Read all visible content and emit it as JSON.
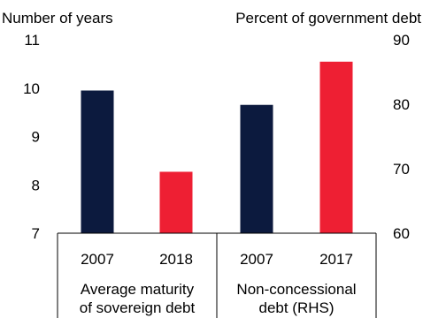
{
  "chart_data": {
    "type": "bar",
    "left_axis": {
      "label": "Number of years",
      "ylim": [
        7,
        11
      ],
      "ticks": [
        "7",
        "8",
        "9",
        "10",
        "11"
      ]
    },
    "right_axis": {
      "label": "Percent of government debt",
      "ylim": [
        60,
        90
      ],
      "ticks": [
        "60",
        "70",
        "80",
        "90"
      ]
    },
    "grid": false,
    "colors": {
      "navy": "#0c1a3e",
      "red": "#ee1f33"
    },
    "groups": [
      {
        "label_lines": [
          "Average maturity",
          "of sovereign debt"
        ],
        "axis": "left",
        "bars": [
          {
            "category": "2007",
            "value": 9.95,
            "color": "#0c1a3e"
          },
          {
            "category": "2018",
            "value": 8.27,
            "color": "#ee1f33"
          }
        ]
      },
      {
        "label_lines": [
          "Non-concessional",
          "debt (RHS)"
        ],
        "axis": "right",
        "bars": [
          {
            "category": "2007",
            "value": 79.9,
            "color": "#0c1a3e"
          },
          {
            "category": "2017",
            "value": 86.6,
            "color": "#ee1f33"
          }
        ]
      }
    ]
  }
}
